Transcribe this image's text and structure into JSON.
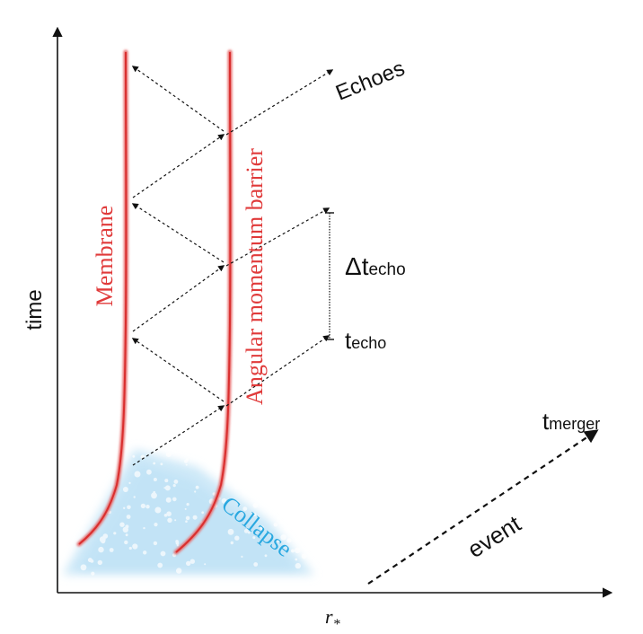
{
  "axes": {
    "y_label": "time",
    "x_label": "r",
    "x_label_sub": "*"
  },
  "curves": {
    "membrane_label": "Membrane",
    "barrier_label": "Angular momentum barrier",
    "curve_color": "#e03a3a"
  },
  "labels": {
    "echoes": "Echoes",
    "collapse": "Collapse",
    "collapse_color": "#29a8e0",
    "delta": "Δt",
    "delta_sub": "echo",
    "techo": "t",
    "techo_sub": "echo",
    "tmerger": "t",
    "tmerger_sub": "merger",
    "event": "event"
  }
}
